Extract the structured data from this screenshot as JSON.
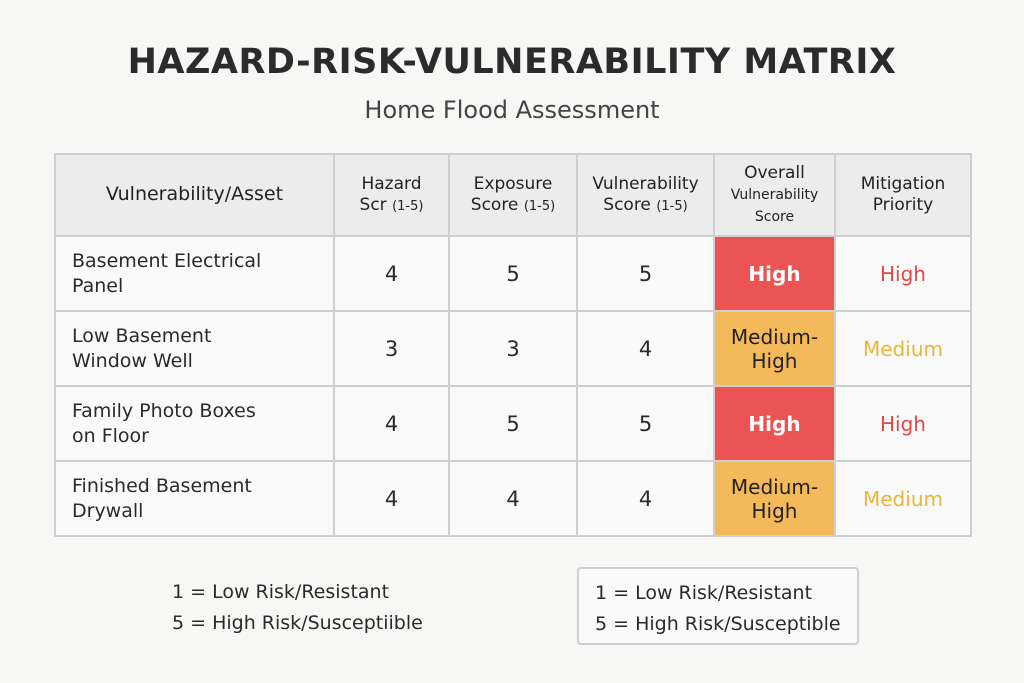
{
  "title": "HAZARD-RISK-VULNERABILITY MATRIX",
  "subtitle": "Home Flood Assessment",
  "colors": {
    "high": "#ec5454",
    "medium": "#f4b95a",
    "high_text": "#e84545",
    "medium_text": "#edb43a"
  },
  "headers": {
    "asset": "Vulnerability/Asset",
    "hazard": "Hazard",
    "hazard2": "Scr",
    "hazard_range": "(1-5)",
    "exposure": "Exposure",
    "exposure2": "Score",
    "exposure_range": "(1-5)",
    "vuln": "Vulnerability",
    "vuln2": "Score",
    "vuln_range": "(1-5)",
    "overall1": "Overall",
    "overall2": "Vulnerability",
    "overall3": "Score",
    "priority1": "Mitigation",
    "priority2": "Priority"
  },
  "rows": [
    {
      "asset1": "Basement Electrical",
      "asset2": "Panel",
      "hazard": "4",
      "exposure": "5",
      "vulnerability": "5",
      "overall1": "High",
      "overall2": "",
      "level": "high",
      "priority": "High"
    },
    {
      "asset1": "Low Basement",
      "asset2": "Window Well",
      "hazard": "3",
      "exposure": "3",
      "vulnerability": "4",
      "overall1": "Medium-",
      "overall2": "High",
      "level": "medium",
      "priority": "Medium"
    },
    {
      "asset1": "Family Photo Boxes",
      "asset2": "on Floor",
      "hazard": "4",
      "exposure": "5",
      "vulnerability": "5",
      "overall1": "High",
      "overall2": "",
      "level": "high",
      "priority": "High"
    },
    {
      "asset1": "Finished Basement",
      "asset2": "Drywall",
      "hazard": "4",
      "exposure": "4",
      "vulnerability": "4",
      "overall1": "Medium-",
      "overall2": "High",
      "level": "medium",
      "priority": "Medium"
    }
  ],
  "legend": {
    "line1": "1 = Low Risk/Resistant",
    "line2": "5 = High Risk/Susceptiible"
  },
  "legend_box": {
    "line1": "1 = Low Risk/Resistant",
    "line2": "5 = High Risk/Susceptible"
  }
}
